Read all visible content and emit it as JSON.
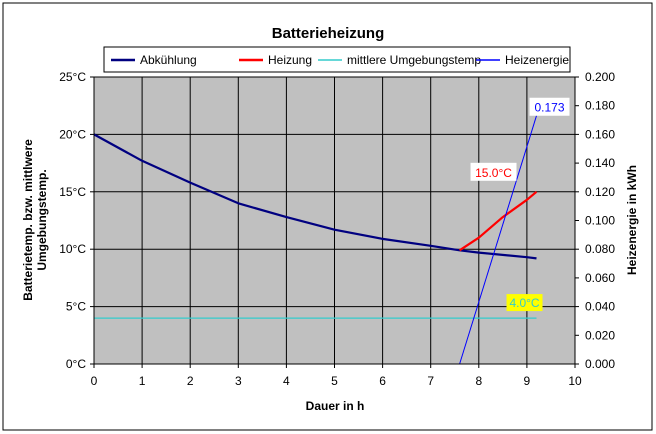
{
  "chart_data": {
    "type": "line",
    "title": "Batterieheizung",
    "xlabel": "Dauer in h",
    "ylabel_left": [
      "Batterietemp. bzw. mittlwere",
      "Umgebungstemp."
    ],
    "ylabel_right": "Heizenergie in kWh",
    "xlim": [
      0,
      10
    ],
    "ylim_left": [
      0,
      25
    ],
    "ylim_right": [
      0,
      0.2
    ],
    "x_ticks": [
      "0",
      "1",
      "2",
      "3",
      "4",
      "5",
      "6",
      "7",
      "8",
      "9",
      "10"
    ],
    "y_left_ticks": [
      "0°C",
      "5°C",
      "10°C",
      "15°C",
      "20°C",
      "25°C"
    ],
    "y_right_ticks": [
      "0.000",
      "0.020",
      "0.040",
      "0.060",
      "0.080",
      "0.100",
      "0.120",
      "0.140",
      "0.160",
      "0.180",
      "0.200"
    ],
    "grid": true,
    "legend_placement": "top",
    "series": [
      {
        "name": "Abkühlung",
        "axis": "left",
        "color": "#000080",
        "x": [
          0,
          1,
          2,
          3,
          4,
          5,
          6,
          7,
          7.6,
          8,
          9,
          9.2
        ],
        "y": [
          20.0,
          17.7,
          15.8,
          14.0,
          12.8,
          11.7,
          10.9,
          10.3,
          9.9,
          9.7,
          9.3,
          9.2
        ]
      },
      {
        "name": "Heizung",
        "axis": "left",
        "color": "#ff0000",
        "x": [
          7.6,
          8.0,
          8.5,
          9.0,
          9.2
        ],
        "y": [
          9.9,
          11.0,
          12.8,
          14.3,
          15.0
        ]
      },
      {
        "name": "mittlere Umgebungstemp",
        "axis": "left",
        "color": "#33cccc",
        "x": [
          0,
          9.2
        ],
        "y": [
          4.0,
          4.0
        ]
      },
      {
        "name": "Heizenergie",
        "axis": "right",
        "color": "#0000ff",
        "x": [
          7.6,
          9.2
        ],
        "y": [
          0.0,
          0.173
        ]
      }
    ],
    "annotations": [
      {
        "text": "0.173",
        "x": 9.2,
        "y": 0.173,
        "axis": "right",
        "color": "#0000ff",
        "background": "#ffffff"
      },
      {
        "text": "15.0°C",
        "x": 9.2,
        "y": 15.0,
        "axis": "left",
        "color": "#ff0000",
        "background": "#ffffff"
      },
      {
        "text": "4.0°C",
        "x": 9.2,
        "y": 4.0,
        "axis": "left",
        "color": "#33cccc",
        "background": "#ffff00"
      }
    ],
    "colors": {
      "plot_background": "#c0c0c0",
      "grid": "#000000"
    }
  }
}
